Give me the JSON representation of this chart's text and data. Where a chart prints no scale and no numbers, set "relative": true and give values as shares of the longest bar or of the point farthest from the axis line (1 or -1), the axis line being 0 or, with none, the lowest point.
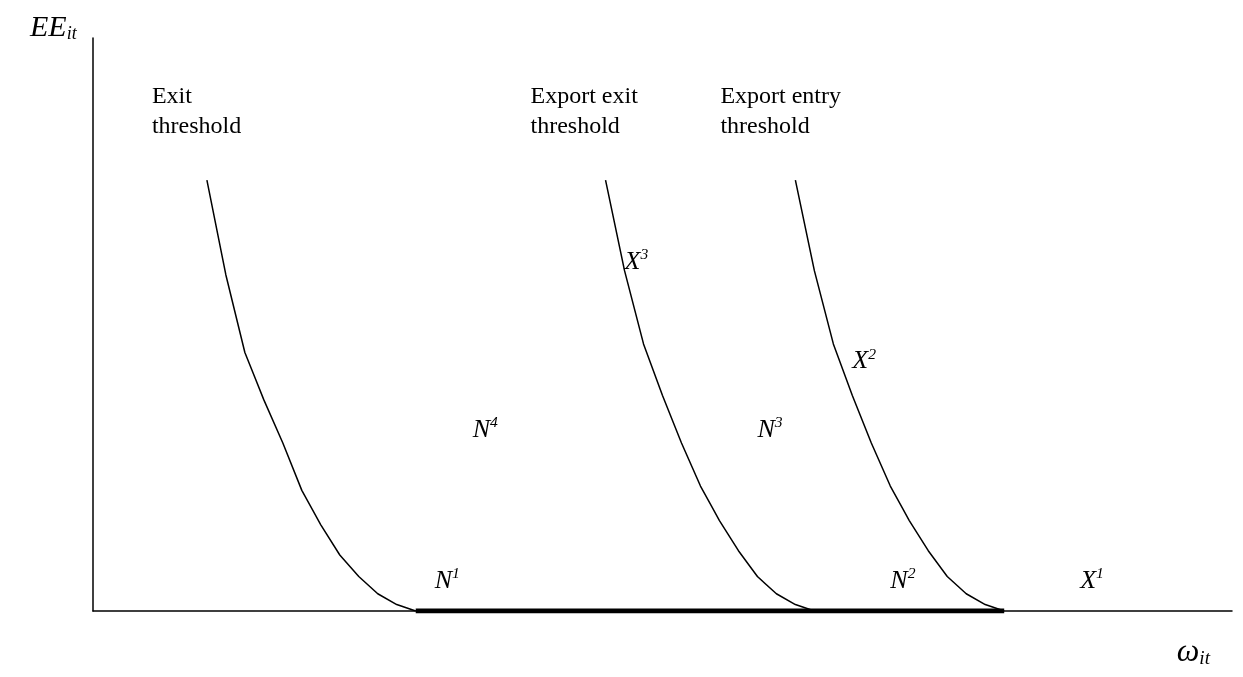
{
  "chart_data": {
    "type": "line",
    "relative": true,
    "xlabel": "ω$_{it}$",
    "ylabel": "EE$_{it}$",
    "categories": [
      null,
      null,
      null,
      null,
      null,
      null,
      null,
      null,
      null,
      null,
      null,
      null,
      null,
      null,
      null,
      null,
      null,
      null,
      null,
      null,
      null,
      null,
      null,
      null,
      null,
      null,
      null,
      null,
      null,
      null,
      null,
      null,
      null,
      null,
      null,
      null,
      null,
      null,
      null,
      null,
      null,
      null,
      null,
      null,
      null,
      null,
      null,
      null,
      null,
      null,
      null,
      null,
      null,
      null,
      null,
      null,
      null,
      null,
      null,
      null,
      null
    ],
    "series": [
      {
        "name": "Exit threshold",
        "color": "#000000",
        "values": [
          null,
          null,
          null,
          null,
          null,
          null,
          1,
          0.78,
          0.6,
          0.49,
          0.39,
          0.28,
          0.2,
          0.13,
          0.08,
          0.04,
          0.015,
          0,
          null,
          null,
          null,
          null,
          null,
          null,
          null,
          null,
          null,
          null,
          null,
          null,
          null,
          null,
          null,
          null,
          null,
          null,
          null,
          null,
          null,
          null,
          null,
          null,
          null,
          null,
          null,
          null,
          null,
          null,
          null,
          null,
          null,
          null,
          null,
          null,
          null,
          null,
          null,
          null,
          null,
          null,
          null
        ]
      },
      {
        "name": "Export exit threshold",
        "color": "#000000",
        "values": [
          null,
          null,
          null,
          null,
          null,
          null,
          null,
          null,
          null,
          null,
          null,
          null,
          null,
          null,
          null,
          null,
          null,
          null,
          null,
          null,
          null,
          null,
          null,
          null,
          null,
          null,
          null,
          1,
          0.79,
          0.62,
          0.5,
          0.39,
          0.29,
          0.21,
          0.14,
          0.08,
          0.04,
          0.015,
          0,
          null,
          null,
          null,
          null,
          null,
          null,
          null,
          null,
          null,
          null,
          null,
          null,
          null,
          null,
          null,
          null,
          null,
          null,
          null,
          null,
          null,
          null
        ]
      },
      {
        "name": "Export entry threshold",
        "color": "#000000",
        "values": [
          null,
          null,
          null,
          null,
          null,
          null,
          null,
          null,
          null,
          null,
          null,
          null,
          null,
          null,
          null,
          null,
          null,
          null,
          null,
          null,
          null,
          null,
          null,
          null,
          null,
          null,
          null,
          null,
          null,
          null,
          null,
          null,
          null,
          null,
          null,
          null,
          null,
          1,
          0.79,
          0.62,
          0.5,
          0.39,
          0.29,
          0.21,
          0.14,
          0.08,
          0.04,
          0.015,
          0,
          null,
          null,
          null,
          null,
          null,
          null,
          null,
          null,
          null,
          null,
          null,
          null
        ]
      },
      {
        "color": "#000000",
        "values": [
          null,
          null,
          null,
          null,
          null,
          null,
          null,
          null,
          null,
          null,
          null,
          null,
          null,
          null,
          null,
          null,
          null,
          0,
          0,
          0,
          0,
          0,
          0,
          0,
          0,
          0,
          0,
          0,
          0,
          0,
          0,
          0,
          0,
          0,
          0,
          0,
          0,
          0,
          0,
          0,
          0,
          0,
          0,
          0,
          0,
          0,
          0,
          0,
          0,
          null,
          null,
          null,
          null,
          null,
          null,
          null,
          null,
          null,
          null,
          null,
          null
        ]
      }
    ],
    "annotations": [
      "N$^{1}$",
      "N$^{2}$",
      "X$^{1}$",
      "N$^{3}$",
      "N$^{4}$",
      "X$^{3}$",
      "X$^{2}$"
    ],
    "legend": false,
    "grid": false,
    "marker": "none",
    "line_style": "solid"
  }
}
